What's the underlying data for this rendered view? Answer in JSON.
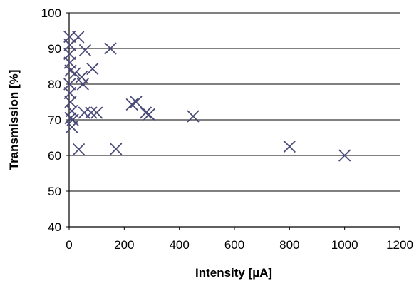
{
  "chart_data": {
    "type": "scatter",
    "xlabel": "Intensity [µA]",
    "ylabel": "Transmission [%]",
    "xlim": [
      0,
      1200
    ],
    "ylim": [
      40,
      100
    ],
    "x_ticks": [
      0,
      200,
      400,
      600,
      800,
      1000,
      1200
    ],
    "y_ticks": [
      40,
      50,
      60,
      70,
      80,
      90,
      100
    ],
    "grid": "horizontal major gridlines",
    "legend": "none",
    "marker": "x",
    "marker_color": "#4a4a78",
    "series": [
      {
        "points": [
          {
            "x": 2,
            "y": 93.3
          },
          {
            "x": 33,
            "y": 93.2
          },
          {
            "x": 3,
            "y": 91.0
          },
          {
            "x": 2,
            "y": 88.5
          },
          {
            "x": 58,
            "y": 89.5
          },
          {
            "x": 150,
            "y": 90.0
          },
          {
            "x": 3,
            "y": 86.0
          },
          {
            "x": 5,
            "y": 83.8
          },
          {
            "x": 20,
            "y": 83.0
          },
          {
            "x": 45,
            "y": 82.0
          },
          {
            "x": 85,
            "y": 84.3
          },
          {
            "x": 2,
            "y": 80.0
          },
          {
            "x": 50,
            "y": 80.0
          },
          {
            "x": 3,
            "y": 77.5
          },
          {
            "x": 5,
            "y": 75.0
          },
          {
            "x": 10,
            "y": 72.5
          },
          {
            "x": 5,
            "y": 70.5
          },
          {
            "x": 13,
            "y": 70.0
          },
          {
            "x": 10,
            "y": 68.0
          },
          {
            "x": 55,
            "y": 72.0
          },
          {
            "x": 80,
            "y": 72.0
          },
          {
            "x": 100,
            "y": 72.0
          },
          {
            "x": 228,
            "y": 74.3
          },
          {
            "x": 243,
            "y": 75.0
          },
          {
            "x": 278,
            "y": 72.0
          },
          {
            "x": 290,
            "y": 71.5
          },
          {
            "x": 450,
            "y": 71.0
          },
          {
            "x": 35,
            "y": 61.7
          },
          {
            "x": 170,
            "y": 61.8
          },
          {
            "x": 800,
            "y": 62.5
          },
          {
            "x": 1000,
            "y": 60.0
          }
        ]
      }
    ]
  }
}
